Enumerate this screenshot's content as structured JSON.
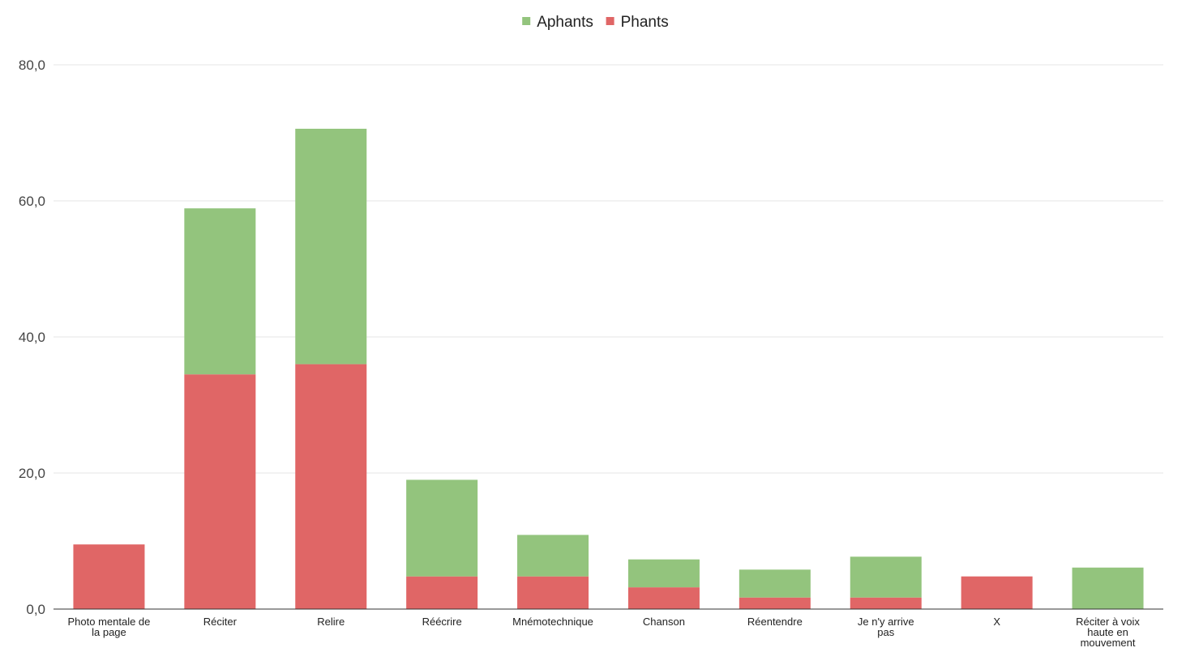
{
  "chart_data": {
    "type": "bar",
    "stacked": true,
    "categories": [
      "Photo mentale de la page",
      "Réciter",
      "Relire",
      "Réécrire",
      "Mnémotechnique",
      "Chanson",
      "Réentendre",
      "Je n'y arrive pas",
      "X",
      "Réciter à voix haute en mouvement"
    ],
    "series": [
      {
        "name": "Phants",
        "color": "#e06666",
        "values": [
          9.5,
          34.5,
          36.0,
          4.8,
          4.8,
          3.2,
          1.7,
          1.7,
          4.8,
          0
        ]
      },
      {
        "name": "Aphants",
        "color": "#93c47d",
        "values": [
          0,
          24.4,
          34.6,
          14.2,
          6.1,
          4.1,
          4.1,
          6.0,
          0,
          6.1
        ]
      }
    ],
    "legend_order": [
      "Aphants",
      "Phants"
    ],
    "legend_position": "top",
    "title": "",
    "xlabel": "",
    "ylabel": "",
    "ylim": [
      0,
      80
    ],
    "yticks": [
      "0,0",
      "20,0",
      "40,0",
      "60,0",
      "80,0"
    ],
    "grid": true
  }
}
